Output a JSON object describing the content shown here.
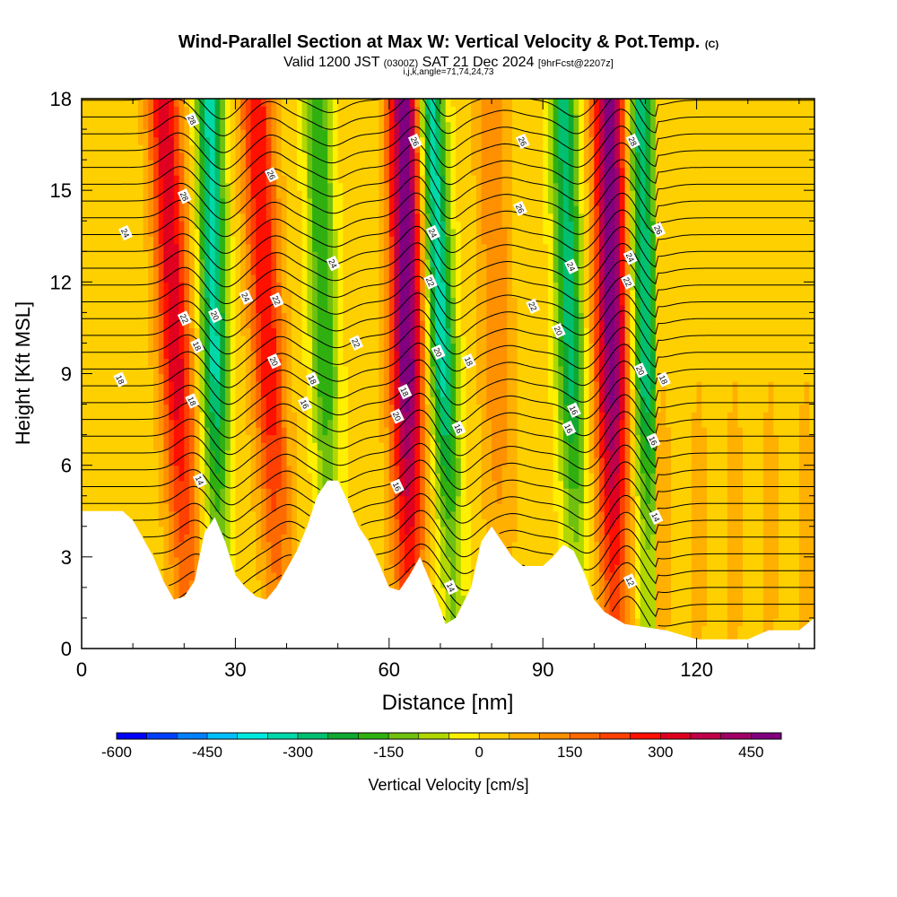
{
  "header": {
    "title_main": "Wind-Parallel Section at Max W: Vertical Velocity & Pot.Temp.",
    "title_unit": "(C)",
    "valid_prefix": "Valid 1200 JST",
    "valid_utc": "(0300Z)",
    "valid_date": "SAT 21 Dec 2024",
    "forecast": "[9hrFcst@2207z]",
    "indices": "i,j,k,angle=71,74,24,73"
  },
  "chart_data": {
    "type": "heatmap",
    "xlabel": "Distance [nm]",
    "ylabel": "Height [Kft MSL]",
    "xlim": [
      0,
      143
    ],
    "ylim": [
      0,
      18
    ],
    "x_ticks": [
      0,
      30,
      60,
      90,
      120
    ],
    "y_ticks": [
      0,
      3,
      6,
      9,
      12,
      15,
      18
    ],
    "colorbar": {
      "label": "Vertical Velocity [cm/s]",
      "range": [
        -600,
        500
      ],
      "step": 50,
      "tick_values": [
        -600,
        -450,
        -300,
        -150,
        0,
        150,
        300,
        450
      ],
      "colors": [
        "#0000ff",
        "#0040ff",
        "#0080ff",
        "#00c0ff",
        "#00e8e0",
        "#00d8a8",
        "#00c070",
        "#10a830",
        "#30b010",
        "#70c010",
        "#b0d800",
        "#ffef00",
        "#ffd000",
        "#ffb000",
        "#ff9000",
        "#ff6a00",
        "#ff4000",
        "#ff1000",
        "#e00020",
        "#c00048",
        "#a00068",
        "#800080"
      ]
    },
    "terrain_kft": [
      [
        0,
        4.5
      ],
      [
        5,
        4.5
      ],
      [
        8,
        4.5
      ],
      [
        10,
        4.2
      ],
      [
        12,
        3.6
      ],
      [
        14,
        3
      ],
      [
        16,
        2.2
      ],
      [
        18,
        1.6
      ],
      [
        20,
        1.7
      ],
      [
        22,
        2.2
      ],
      [
        24,
        3.8
      ],
      [
        26,
        4.3
      ],
      [
        28,
        3.5
      ],
      [
        30,
        2.4
      ],
      [
        32,
        2
      ],
      [
        34,
        1.7
      ],
      [
        36,
        1.6
      ],
      [
        38,
        2
      ],
      [
        40,
        2.6
      ],
      [
        42,
        3.2
      ],
      [
        44,
        4
      ],
      [
        46,
        5
      ],
      [
        48,
        5.5
      ],
      [
        50,
        5.5
      ],
      [
        52,
        4.8
      ],
      [
        54,
        4
      ],
      [
        56,
        3.5
      ],
      [
        58,
        2.8
      ],
      [
        60,
        2
      ],
      [
        62,
        1.9
      ],
      [
        64,
        2.4
      ],
      [
        66,
        3
      ],
      [
        68,
        2.2
      ],
      [
        70,
        1.3
      ],
      [
        71,
        0.8
      ],
      [
        73,
        1
      ],
      [
        76,
        2
      ],
      [
        78,
        3.5
      ],
      [
        80,
        4
      ],
      [
        82,
        3.5
      ],
      [
        84,
        3
      ],
      [
        86,
        2.7
      ],
      [
        88,
        2.7
      ],
      [
        90,
        2.7
      ],
      [
        92,
        3
      ],
      [
        94,
        3.4
      ],
      [
        96,
        3.2
      ],
      [
        98,
        2.5
      ],
      [
        100,
        1.6
      ],
      [
        102,
        1.2
      ],
      [
        104,
        1
      ],
      [
        106,
        0.8
      ],
      [
        110,
        0.7
      ],
      [
        114,
        0.6
      ],
      [
        118,
        0.4
      ],
      [
        120,
        0.3
      ],
      [
        130,
        0.3
      ],
      [
        134,
        0.6
      ],
      [
        140,
        0.6
      ],
      [
        143,
        1
      ]
    ],
    "updraft_bands": [
      {
        "x_low": 21,
        "x_high": 16,
        "w_max": 320
      },
      {
        "x_low": 39,
        "x_high": 34,
        "w_max": 280
      },
      {
        "x_low": 64,
        "x_high": 63,
        "w_max": 480
      },
      {
        "x_low": 82,
        "x_high": 80,
        "w_max": 120
      },
      {
        "x_low": 104,
        "x_high": 103,
        "w_max": 470
      }
    ],
    "downdraft_bands": [
      {
        "x_low": 27,
        "x_high": 25,
        "w_min": -340
      },
      {
        "x_low": 49,
        "x_high": 46,
        "w_min": -220
      },
      {
        "x_low": 73,
        "x_high": 68,
        "w_min": -360
      },
      {
        "x_low": 97,
        "x_high": 94,
        "w_min": -300
      },
      {
        "x_low": 111,
        "x_high": 109,
        "w_min": -320
      }
    ],
    "contour_labels": [
      {
        "x": 21.5,
        "y": 17.3,
        "text": "28"
      },
      {
        "x": 20,
        "y": 14.8,
        "text": "28"
      },
      {
        "x": 37,
        "y": 15.5,
        "text": "26"
      },
      {
        "x": 65,
        "y": 16.6,
        "text": "26"
      },
      {
        "x": 86,
        "y": 16.6,
        "text": "26"
      },
      {
        "x": 85.5,
        "y": 14.4,
        "text": "26"
      },
      {
        "x": 107.5,
        "y": 16.6,
        "text": "28"
      },
      {
        "x": 112.5,
        "y": 13.7,
        "text": "26"
      },
      {
        "x": 8.5,
        "y": 13.6,
        "text": "24"
      },
      {
        "x": 32,
        "y": 11.5,
        "text": "24"
      },
      {
        "x": 49,
        "y": 12.6,
        "text": "24"
      },
      {
        "x": 68.5,
        "y": 13.6,
        "text": "24"
      },
      {
        "x": 95.5,
        "y": 12.5,
        "text": "24"
      },
      {
        "x": 107,
        "y": 12.8,
        "text": "24"
      },
      {
        "x": 20,
        "y": 10.8,
        "text": "22"
      },
      {
        "x": 38,
        "y": 11.4,
        "text": "22"
      },
      {
        "x": 53.5,
        "y": 10,
        "text": "22"
      },
      {
        "x": 68,
        "y": 12,
        "text": "22"
      },
      {
        "x": 88,
        "y": 11.2,
        "text": "22"
      },
      {
        "x": 106.5,
        "y": 12,
        "text": "22"
      },
      {
        "x": 26,
        "y": 10.9,
        "text": "20"
      },
      {
        "x": 37.5,
        "y": 9.4,
        "text": "20"
      },
      {
        "x": 69.5,
        "y": 9.7,
        "text": "20"
      },
      {
        "x": 93,
        "y": 10.4,
        "text": "20"
      },
      {
        "x": 109,
        "y": 9.1,
        "text": "20"
      },
      {
        "x": 61.5,
        "y": 7.6,
        "text": "20"
      },
      {
        "x": 22.5,
        "y": 9.9,
        "text": "18"
      },
      {
        "x": 7.5,
        "y": 8.8,
        "text": "18"
      },
      {
        "x": 45,
        "y": 8.8,
        "text": "18"
      },
      {
        "x": 63,
        "y": 8.4,
        "text": "18"
      },
      {
        "x": 75.5,
        "y": 9.4,
        "text": "18"
      },
      {
        "x": 113.5,
        "y": 8.8,
        "text": "18"
      },
      {
        "x": 21.5,
        "y": 8.1,
        "text": "18"
      },
      {
        "x": 43.5,
        "y": 8,
        "text": "16"
      },
      {
        "x": 96,
        "y": 7.8,
        "text": "16"
      },
      {
        "x": 95,
        "y": 7.2,
        "text": "16"
      },
      {
        "x": 73.5,
        "y": 7.2,
        "text": "16"
      },
      {
        "x": 111.5,
        "y": 6.8,
        "text": "16"
      },
      {
        "x": 61.5,
        "y": 5.3,
        "text": "16"
      },
      {
        "x": 23,
        "y": 5.5,
        "text": "14"
      },
      {
        "x": 72,
        "y": 2,
        "text": "14"
      },
      {
        "x": 112,
        "y": 4.3,
        "text": "14"
      },
      {
        "x": 107,
        "y": 2.2,
        "text": "12"
      }
    ]
  }
}
